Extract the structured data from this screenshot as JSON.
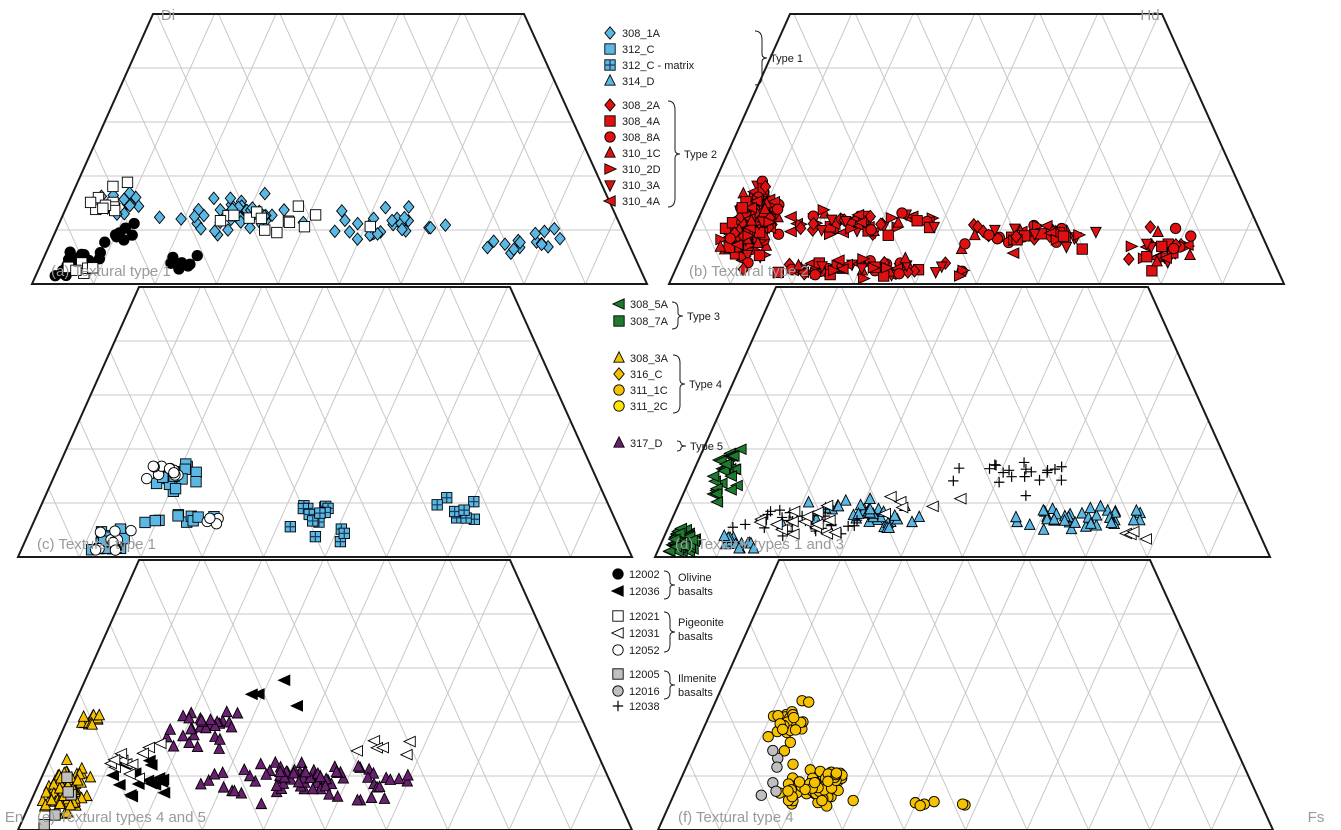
{
  "corners": {
    "di": "Di",
    "hd": "Hd",
    "en": "En",
    "fs": "Fs"
  },
  "colors": {
    "blue": "#5bb8e4",
    "red": "#e01010",
    "green": "#1e7a2e",
    "yellow": "#f6c200",
    "yellow2": "#ffe600",
    "purple": "#6a2070",
    "gray": "#c0c0c0",
    "black": "#000000",
    "white": "#ffffff"
  },
  "legend": {
    "group1": {
      "type": "Type 1",
      "items": [
        "308_1A",
        "312_C",
        "312_C - matrix",
        "314_D"
      ]
    },
    "group2": {
      "type": "Type 2",
      "items": [
        "308_2A",
        "308_4A",
        "308_8A",
        "310_1C",
        "310_2D",
        "310_3A",
        "310_4A"
      ]
    },
    "group3": {
      "type": "Type 3",
      "items": [
        "308_5A",
        "308_7A"
      ]
    },
    "group4": {
      "type": "Type 4",
      "items": [
        "308_3A",
        "316_C",
        "311_1C",
        "311_2C"
      ]
    },
    "group5": {
      "type": "Type 5",
      "items": [
        "317_D"
      ]
    },
    "apollo": {
      "olivine": {
        "items": [
          "12002",
          "12036"
        ],
        "label1": "Olivine",
        "label2": "basalts"
      },
      "pigeonite": {
        "items": [
          "12021",
          "12031",
          "12052"
        ],
        "label1": "Pigeonite",
        "label2": "basalts"
      },
      "ilmenite": {
        "items": [
          "12005",
          "12016"
        ],
        "label1": "Ilmenite",
        "label2": "basalts"
      },
      "other": {
        "items": [
          "12038"
        ]
      }
    }
  },
  "chart_data": [
    {
      "type": "scatter",
      "ternary": [
        "En",
        "Fs",
        "Di",
        "Hd"
      ],
      "title": "(a) Textural type 1",
      "series": [
        {
          "name": "308_1A",
          "marker": "diamond",
          "color": "#5bb8e4",
          "cloud": [
            [
              0.1,
              0.3,
              0.08,
              0.08,
              14
            ],
            [
              0.3,
              0.26,
              0.14,
              0.1,
              40
            ],
            [
              0.58,
              0.22,
              0.16,
              0.08,
              30
            ],
            [
              0.82,
              0.15,
              0.12,
              0.08,
              16
            ]
          ]
        },
        {
          "name": "12002",
          "marker": "circle",
          "color": "#000000",
          "cloud": [
            [
              0.06,
              0.07,
              0.06,
              0.08,
              24
            ],
            [
              0.12,
              0.18,
              0.04,
              0.14,
              8
            ],
            [
              0.24,
              0.08,
              0.05,
              0.05,
              8
            ]
          ]
        },
        {
          "name": "12021",
          "marker": "square",
          "color": "#ffffff",
          "cloud": [
            [
              0.08,
              0.3,
              0.06,
              0.14,
              10
            ],
            [
              0.38,
              0.25,
              0.18,
              0.08,
              14
            ],
            [
              0.07,
              0.05,
              0.04,
              0.05,
              6
            ]
          ]
        }
      ]
    },
    {
      "type": "scatter",
      "ternary": [
        "En",
        "Fs",
        "Di",
        "Hd"
      ],
      "title": "(b) Textural type 2",
      "series": [
        {
          "name": "308_2A",
          "marker": "mixed",
          "color": "#e01010",
          "cloud": [
            [
              0.1,
              0.22,
              0.06,
              0.2,
              180
            ],
            [
              0.3,
              0.06,
              0.22,
              0.05,
              70
            ],
            [
              0.3,
              0.22,
              0.18,
              0.08,
              60
            ],
            [
              0.6,
              0.18,
              0.18,
              0.08,
              50
            ],
            [
              0.82,
              0.12,
              0.1,
              0.1,
              30
            ]
          ]
        }
      ]
    },
    {
      "type": "scatter",
      "ternary": [
        "En",
        "Fs",
        "Di",
        "Hd"
      ],
      "title": "(c) Textural type 1",
      "series": [
        {
          "name": "312_C",
          "marker": "square",
          "color": "#5bb8e4",
          "cloud": [
            [
              0.22,
              0.3,
              0.06,
              0.08,
              24
            ],
            [
              0.26,
              0.14,
              0.08,
              0.04,
              10
            ],
            [
              0.14,
              0.05,
              0.06,
              0.07,
              20
            ]
          ]
        },
        {
          "name": "312_C - matrix",
          "marker": "cross-square",
          "color": "#5bb8e4",
          "cloud": [
            [
              0.48,
              0.12,
              0.1,
              0.1,
              16
            ],
            [
              0.74,
              0.18,
              0.06,
              0.08,
              8
            ]
          ]
        },
        {
          "name": "12052",
          "marker": "circle",
          "color": "#ffffff",
          "cloud": [
            [
              0.2,
              0.32,
              0.06,
              0.06,
              12
            ],
            [
              0.14,
              0.06,
              0.05,
              0.07,
              10
            ],
            [
              0.3,
              0.14,
              0.05,
              0.04,
              4
            ]
          ]
        }
      ]
    },
    {
      "type": "scatter",
      "ternary": [
        "En",
        "Fs",
        "Di",
        "Hd"
      ],
      "title": "(d) Textural types 1 and 3",
      "series": [
        {
          "name": "308_5A",
          "marker": "tri-left",
          "color": "#1e7a2e",
          "cloud": [
            [
              0.06,
              0.3,
              0.04,
              0.14,
              30
            ],
            [
              0.03,
              0.06,
              0.04,
              0.07,
              50
            ]
          ]
        },
        {
          "name": "314_D",
          "marker": "tri-up",
          "color": "#5bb8e4",
          "cloud": [
            [
              0.34,
              0.16,
              0.18,
              0.08,
              40
            ],
            [
              0.7,
              0.14,
              0.16,
              0.06,
              40
            ],
            [
              0.12,
              0.06,
              0.06,
              0.05,
              14
            ]
          ]
        },
        {
          "name": "12038",
          "marker": "plus",
          "color": "#000000",
          "cloud": [
            [
              0.22,
              0.14,
              0.14,
              0.08,
              30
            ],
            [
              0.6,
              0.3,
              0.16,
              0.08,
              20
            ]
          ]
        },
        {
          "name": "12031",
          "marker": "tri-left",
          "color": "#ffffff",
          "cloud": [
            [
              0.22,
              0.14,
              0.12,
              0.08,
              16
            ],
            [
              0.4,
              0.2,
              0.12,
              0.06,
              6
            ],
            [
              0.78,
              0.08,
              0.06,
              0.04,
              4
            ]
          ]
        }
      ]
    },
    {
      "type": "scatter",
      "ternary": [
        "En",
        "Fs",
        "Di",
        "Hd"
      ],
      "title": "(e) Textural types 4 and 5",
      "series": [
        {
          "name": "308_3A",
          "marker": "tri-up",
          "color": "#f6c200",
          "cloud": [
            [
              0.05,
              0.14,
              0.05,
              0.13,
              100
            ],
            [
              0.05,
              0.4,
              0.04,
              0.06,
              12
            ]
          ]
        },
        {
          "name": "317_D",
          "marker": "tri-up",
          "color": "#6a2070",
          "cloud": [
            [
              0.27,
              0.38,
              0.1,
              0.1,
              30
            ],
            [
              0.48,
              0.18,
              0.22,
              0.1,
              80
            ]
          ]
        },
        {
          "name": "12036",
          "marker": "tri-left",
          "color": "#000000",
          "cloud": [
            [
              0.18,
              0.18,
              0.1,
              0.14,
              16
            ],
            [
              0.4,
              0.5,
              0.12,
              0.14,
              4
            ]
          ]
        },
        {
          "name": "12031",
          "marker": "tri-left",
          "color": "#ffffff",
          "cloud": [
            [
              0.16,
              0.25,
              0.08,
              0.1,
              12
            ],
            [
              0.6,
              0.3,
              0.1,
              0.06,
              6
            ]
          ]
        },
        {
          "name": "12005",
          "marker": "square",
          "color": "#c0c0c0",
          "cloud": [
            [
              0.05,
              0.12,
              0.05,
              0.2,
              5
            ]
          ]
        }
      ]
    },
    {
      "type": "scatter",
      "ternary": [
        "En",
        "Fs",
        "Di",
        "Hd"
      ],
      "title": "(f) Textural type 4",
      "series": [
        {
          "name": "311_1C",
          "marker": "circle",
          "color": "#f6c200",
          "cloud": [
            [
              0.16,
              0.4,
              0.04,
              0.14,
              30
            ],
            [
              0.24,
              0.16,
              0.08,
              0.1,
              60
            ],
            [
              0.46,
              0.1,
              0.1,
              0.02,
              6
            ]
          ]
        },
        {
          "name": "12016",
          "marker": "circle",
          "color": "#c0c0c0",
          "cloud": [
            [
              0.16,
              0.2,
              0.06,
              0.14,
              6
            ]
          ]
        }
      ]
    }
  ]
}
